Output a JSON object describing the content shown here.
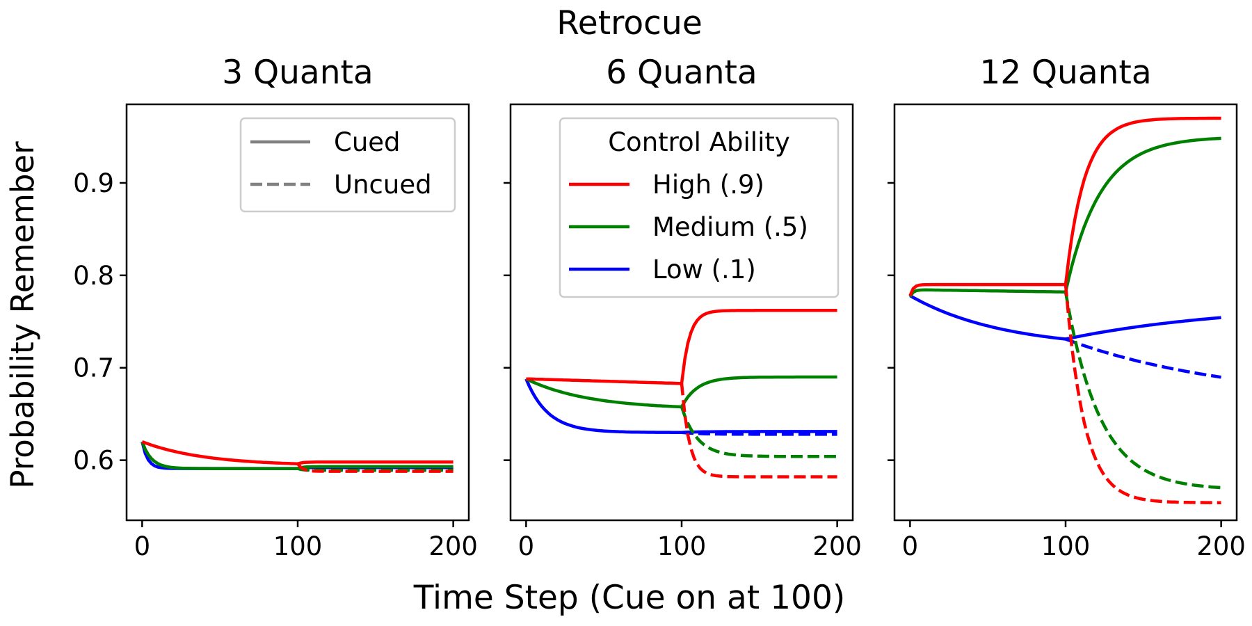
{
  "chart_data": {
    "type": "line",
    "title": "Retrocue",
    "xlabel": "Time Step (Cue on at 100)",
    "ylabel": "Probability Remember",
    "xlim": [
      -10,
      210
    ],
    "ylim": [
      0.535,
      0.985
    ],
    "xticks": [
      0,
      100,
      200
    ],
    "yticks": [
      0.6,
      0.7,
      0.8,
      0.9
    ],
    "ytick_labels": [
      "0.6",
      "0.7",
      "0.8",
      "0.9"
    ],
    "xtick_labels": [
      "0",
      "100",
      "200"
    ],
    "sharey": true,
    "grid": false,
    "colors": {
      "high": "#ff0000",
      "medium": "#008000",
      "low": "#0000ff",
      "style_legend": "#808080"
    },
    "style_legend": {
      "placement": "top-right of first panel",
      "entries": [
        {
          "label": "Cued",
          "linestyle": "solid"
        },
        {
          "label": "Uncued",
          "linestyle": "dashed"
        }
      ]
    },
    "color_legend": {
      "title": "Control Ability",
      "placement": "top-right of second panel",
      "entries": [
        {
          "label": "High (.9)",
          "color": "#ff0000"
        },
        {
          "label": "Medium (.5)",
          "color": "#008000"
        },
        {
          "label": "Low (.1)",
          "color": "#0000ff"
        }
      ]
    },
    "panels": [
      {
        "title": "3 Quanta",
        "start": 0.62,
        "series": {
          "high": {
            "pre": 0.594,
            "pre_tau": 40,
            "pre_shape": "exp",
            "cued": 0.598,
            "uncued": 0.588,
            "post_tau": 3
          },
          "medium": {
            "pre": 0.591,
            "pre_tau": 6,
            "pre_shape": "exp",
            "cued": 0.593,
            "uncued": 0.589,
            "post_tau": 3
          },
          "low": {
            "pre": 0.591,
            "pre_tau": 3.5,
            "pre_shape": "exp",
            "cued": 0.592,
            "uncued": 0.59,
            "post_tau": 3
          }
        }
      },
      {
        "title": "6 Quanta",
        "start": 0.688,
        "series": {
          "high": {
            "pre": 0.683,
            "pre_shape": "linear",
            "cued": 0.762,
            "uncued": 0.582,
            "post_tau": 5
          },
          "medium": {
            "pre": 0.655,
            "pre_tau": 40,
            "pre_shape": "exp",
            "cued": 0.69,
            "uncued": 0.604,
            "post_tau": 10
          },
          "low": {
            "pre": 0.63,
            "pre_tau": 14,
            "pre_shape": "exp",
            "cued": 0.631,
            "uncued": 0.628,
            "post_tau": 12
          }
        }
      },
      {
        "title": "12 Quanta",
        "start": 0.778,
        "series": {
          "high": {
            "pre": 0.79,
            "pre_tau": 2,
            "pre_shape": "exp",
            "cued": 0.97,
            "uncued": 0.554,
            "post_tau": 12
          },
          "medium": {
            "pre": 0.782,
            "pre_shape": "flat_rise",
            "cued": 0.95,
            "uncued": 0.568,
            "post_tau": 22
          },
          "low": {
            "pre": 0.731,
            "pre_shape": "linear_curve",
            "cued": 0.77,
            "uncued": 0.662,
            "post_tau": 110
          }
        }
      }
    ]
  }
}
